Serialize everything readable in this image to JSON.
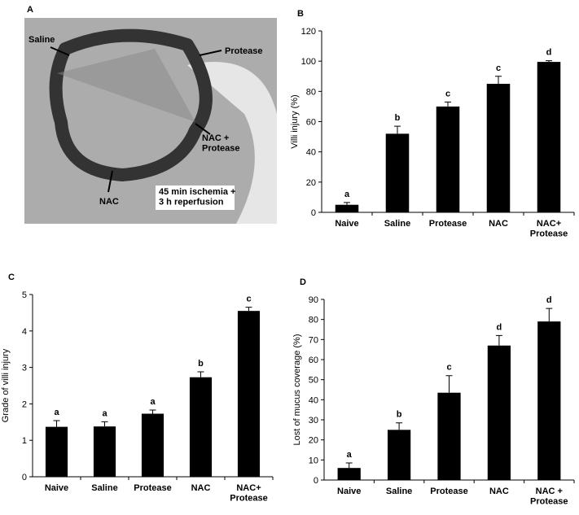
{
  "photo": {
    "panel_label": "A",
    "labels": [
      "Saline",
      "Protease",
      "NAC +\nProtease",
      "NAC"
    ],
    "caption": "45 min ischemia +\n3 h reperfusion"
  },
  "chart_data": [
    {
      "type": "bar",
      "panel_label": "B",
      "ylabel": "Villi injury (%)",
      "categories": [
        "Naive",
        "Saline",
        "Protease",
        "NAC",
        "NAC+\nProtease"
      ],
      "values": [
        5,
        52,
        70,
        85,
        99.5
      ],
      "errors": [
        1.5,
        5,
        3,
        5,
        0.8
      ],
      "annotations": [
        "a",
        "b",
        "c",
        "c",
        "d"
      ],
      "color": "#000000",
      "ylim": [
        0,
        120
      ],
      "yticks": [
        0,
        20,
        40,
        60,
        80,
        100,
        120
      ]
    },
    {
      "type": "bar",
      "panel_label": "C",
      "ylabel": "Grade of villi injury",
      "categories": [
        "Naive",
        "Saline",
        "Protease",
        "NAC",
        "NAC+\nProtease"
      ],
      "values": [
        1.37,
        1.38,
        1.73,
        2.73,
        4.55
      ],
      "errors": [
        0.17,
        0.13,
        0.1,
        0.15,
        0.1
      ],
      "annotations": [
        "a",
        "a",
        "a",
        "b",
        "c"
      ],
      "color": "#000000",
      "ylim": [
        0,
        5
      ],
      "yticks": [
        0,
        1,
        2,
        3,
        4,
        5
      ]
    },
    {
      "type": "bar",
      "panel_label": "D",
      "ylabel": "Lost of mucus coverage (%)",
      "categories": [
        "Naive",
        "Saline",
        "Protease",
        "NAC",
        "NAC +\nProtease"
      ],
      "values": [
        6,
        25,
        43.5,
        67,
        79
      ],
      "errors": [
        2.5,
        3.5,
        8.5,
        5,
        6.5
      ],
      "annotations": [
        "a",
        "b",
        "c",
        "d",
        "d"
      ],
      "color": "#000000",
      "ylim": [
        0,
        90
      ],
      "yticks": [
        0,
        10,
        20,
        30,
        40,
        50,
        60,
        70,
        80,
        90
      ]
    }
  ]
}
